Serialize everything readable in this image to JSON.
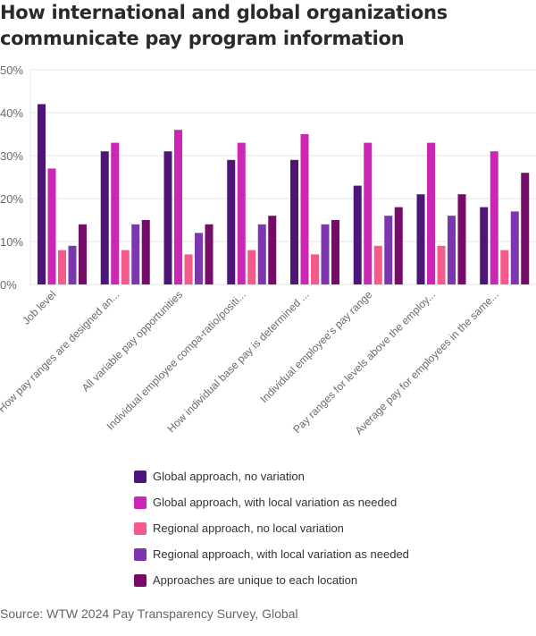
{
  "chart_data": {
    "type": "bar",
    "title": "How international and global organizations communicate pay program information",
    "xlabel": "",
    "ylabel": "",
    "ylim": [
      0,
      50
    ],
    "yticks": [
      "0%",
      "10%",
      "20%",
      "30%",
      "40%",
      "50%"
    ],
    "ytick_values": [
      0,
      10,
      20,
      30,
      40,
      50
    ],
    "grid": true,
    "legend_position": "bottom",
    "categories": [
      "Job level",
      "How pay ranges are designed an...",
      "All variable pay opportunities",
      "Individual employee compa-ratio/positi...",
      "How individual base pay is determined ...",
      "Individual employee's pay range",
      "Pay ranges for levels above the employ...",
      "Average pay for employees in the same..."
    ],
    "series": [
      {
        "name": "Global approach, no variation",
        "color": "#4e1578",
        "values": [
          42,
          31,
          31,
          29,
          29,
          23,
          21,
          18
        ]
      },
      {
        "name": "Global approach, with local variation as needed",
        "color": "#cc27b4",
        "values": [
          27,
          33,
          36,
          33,
          35,
          33,
          33,
          31
        ]
      },
      {
        "name": "Regional approach, no local variation",
        "color": "#f55a8a",
        "values": [
          8,
          8,
          7,
          8,
          7,
          9,
          9,
          8
        ]
      },
      {
        "name": "Regional approach, with local variation as needed",
        "color": "#7d35b0",
        "values": [
          9,
          14,
          12,
          14,
          14,
          16,
          16,
          17
        ]
      },
      {
        "name": "Approaches are unique to each location",
        "color": "#760b68",
        "values": [
          14,
          15,
          14,
          16,
          15,
          18,
          21,
          26
        ]
      }
    ]
  },
  "header": {
    "title_line1": "How international and global organizations",
    "title_line2": "communicate pay program information"
  },
  "footer": {
    "source": "Source: WTW 2024 Pay Transparency Survey, Global"
  },
  "colors": {
    "gridline": "#e6e6e6",
    "axis_text": "#6b6b6b"
  }
}
